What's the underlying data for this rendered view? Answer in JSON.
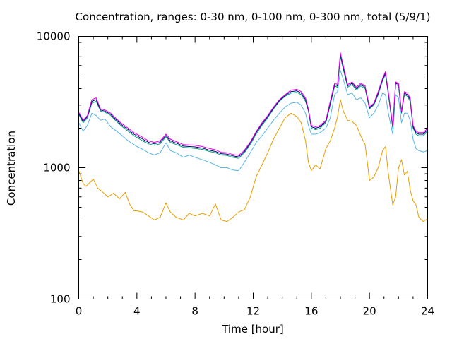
{
  "chart_data": {
    "type": "line",
    "title": "Concentration, ranges: 0-30 nm, 0-100 nm, 0-300 nm, total (5/9/1)",
    "xlabel": "Time [hour]",
    "ylabel": "Concentration",
    "xlim": [
      0,
      24
    ],
    "ylim": [
      100,
      10000
    ],
    "yscale": "log",
    "grid": false,
    "legend": "none",
    "x_ticks": [
      {
        "value": 0,
        "label": "0"
      },
      {
        "value": 4,
        "label": "4"
      },
      {
        "value": 8,
        "label": "8"
      },
      {
        "value": 12,
        "label": "12"
      },
      {
        "value": 16,
        "label": "16"
      },
      {
        "value": 20,
        "label": "20"
      },
      {
        "value": 24,
        "label": "24"
      }
    ],
    "y_ticks": [
      {
        "value": 100,
        "label": "100"
      },
      {
        "value": 1000,
        "label": "1000"
      },
      {
        "value": 10000,
        "label": "10000"
      }
    ],
    "series": [
      {
        "color": "#e69f00",
        "x": [
          0,
          0.3,
          0.5,
          0.8,
          1.0,
          1.3,
          1.6,
          2.0,
          2.4,
          2.8,
          3.2,
          3.5,
          3.8,
          4.0,
          4.4,
          4.8,
          5.2,
          5.6,
          6.0,
          6.3,
          6.7,
          7.2,
          7.6,
          8.0,
          8.5,
          9.0,
          9.4,
          9.8,
          10.2,
          10.6,
          11.0,
          11.4,
          11.8,
          12.2,
          12.6,
          13.0,
          13.4,
          13.8,
          14.2,
          14.6,
          15.0,
          15.3,
          15.6,
          15.8,
          16.0,
          16.3,
          16.6,
          17.0,
          17.3,
          17.6,
          17.8,
          18.0,
          18.2,
          18.5,
          18.8,
          19.1,
          19.4,
          19.7,
          20.0,
          20.3,
          20.6,
          20.9,
          21.1,
          21.3,
          21.6,
          21.8,
          22.0,
          22.2,
          22.4,
          22.6,
          22.8,
          23.0,
          23.2,
          23.4,
          23.7,
          24.0
        ],
        "values": [
          950,
          760,
          720,
          780,
          820,
          700,
          660,
          600,
          640,
          580,
          650,
          530,
          470,
          470,
          460,
          430,
          400,
          420,
          540,
          460,
          420,
          400,
          450,
          430,
          450,
          430,
          530,
          400,
          390,
          420,
          460,
          480,
          600,
          850,
          1050,
          1300,
          1650,
          2000,
          2400,
          2600,
          2450,
          2200,
          1600,
          1100,
          950,
          1050,
          980,
          1400,
          1600,
          2000,
          2450,
          3300,
          2700,
          2300,
          2250,
          2100,
          1750,
          1500,
          800,
          850,
          1000,
          1350,
          1450,
          900,
          520,
          600,
          1000,
          1150,
          880,
          940,
          680,
          560,
          520,
          420,
          390,
          410
        ]
      },
      {
        "color": "#56b4e9",
        "x": [
          0,
          0.3,
          0.6,
          0.9,
          1.2,
          1.5,
          1.8,
          2.2,
          2.6,
          3.0,
          3.4,
          3.8,
          4.0,
          4.4,
          4.8,
          5.2,
          5.6,
          6.0,
          6.3,
          6.7,
          7.2,
          7.6,
          8.0,
          8.5,
          9.0,
          9.4,
          9.8,
          10.2,
          10.6,
          11.0,
          11.4,
          11.8,
          12.2,
          12.6,
          13.0,
          13.4,
          13.8,
          14.2,
          14.6,
          15.0,
          15.3,
          15.6,
          15.8,
          16.0,
          16.3,
          16.6,
          17.0,
          17.3,
          17.6,
          17.8,
          18.0,
          18.2,
          18.5,
          18.8,
          19.1,
          19.4,
          19.7,
          20.0,
          20.3,
          20.6,
          20.9,
          21.1,
          21.3,
          21.6,
          21.8,
          22.0,
          22.2,
          22.4,
          22.6,
          22.8,
          23.0,
          23.2,
          23.4,
          23.7,
          24.0
        ],
        "values": [
          2200,
          1900,
          2100,
          2600,
          2500,
          2300,
          2350,
          2050,
          1900,
          1750,
          1600,
          1500,
          1450,
          1380,
          1300,
          1250,
          1300,
          1550,
          1350,
          1300,
          1200,
          1250,
          1200,
          1150,
          1100,
          1050,
          1000,
          1000,
          960,
          950,
          1100,
          1300,
          1550,
          1750,
          2000,
          2300,
          2600,
          2900,
          3100,
          3150,
          3000,
          2600,
          2100,
          1800,
          1800,
          1850,
          2000,
          2400,
          3600,
          3800,
          5500,
          4700,
          3600,
          3700,
          3300,
          3400,
          3100,
          2400,
          2600,
          3000,
          3700,
          3600,
          2600,
          1800,
          3600,
          3400,
          2200,
          2600,
          2600,
          2300,
          1650,
          1400,
          1350,
          1320,
          1350
        ]
      },
      {
        "color": "#009e73",
        "x": [
          0,
          0.3,
          0.6,
          0.9,
          1.2,
          1.5,
          1.8,
          2.2,
          2.6,
          3.0,
          3.4,
          3.8,
          4.0,
          4.4,
          4.8,
          5.2,
          5.6,
          6.0,
          6.3,
          6.7,
          7.2,
          7.6,
          8.0,
          8.5,
          9.0,
          9.4,
          9.8,
          10.2,
          10.6,
          11.0,
          11.4,
          11.8,
          12.2,
          12.6,
          13.0,
          13.4,
          13.8,
          14.2,
          14.6,
          15.0,
          15.3,
          15.6,
          15.8,
          16.0,
          16.3,
          16.6,
          17.0,
          17.3,
          17.6,
          17.8,
          18.0,
          18.2,
          18.5,
          18.8,
          19.1,
          19.4,
          19.7,
          20.0,
          20.3,
          20.6,
          20.9,
          21.1,
          21.3,
          21.6,
          21.8,
          22.0,
          22.2,
          22.4,
          22.6,
          22.8,
          23.0,
          23.2,
          23.4,
          23.7,
          24.0
        ],
        "values": [
          2550,
          2200,
          2400,
          3100,
          3200,
          2700,
          2650,
          2500,
          2250,
          2050,
          1900,
          1750,
          1700,
          1600,
          1520,
          1480,
          1520,
          1720,
          1560,
          1500,
          1430,
          1420,
          1400,
          1380,
          1330,
          1300,
          1250,
          1240,
          1200,
          1180,
          1300,
          1500,
          1800,
          2100,
          2400,
          2800,
          3200,
          3500,
          3700,
          3750,
          3600,
          3200,
          2700,
          2000,
          1950,
          2000,
          2200,
          3000,
          4200,
          4100,
          7000,
          5600,
          4100,
          4300,
          3900,
          4200,
          4000,
          2800,
          3000,
          3600,
          4600,
          5100,
          3600,
          2000,
          4300,
          4200,
          2600,
          3600,
          3500,
          3200,
          2000,
          1800,
          1750,
          1750,
          1900
        ]
      },
      {
        "color": "#000080",
        "x": [
          0,
          0.3,
          0.6,
          0.9,
          1.2,
          1.5,
          1.8,
          2.2,
          2.6,
          3.0,
          3.4,
          3.8,
          4.0,
          4.4,
          4.8,
          5.2,
          5.6,
          6.0,
          6.3,
          6.7,
          7.2,
          7.6,
          8.0,
          8.5,
          9.0,
          9.4,
          9.8,
          10.2,
          10.6,
          11.0,
          11.4,
          11.8,
          12.2,
          12.6,
          13.0,
          13.4,
          13.8,
          14.2,
          14.6,
          15.0,
          15.3,
          15.6,
          15.8,
          16.0,
          16.3,
          16.6,
          17.0,
          17.3,
          17.6,
          17.8,
          18.0,
          18.2,
          18.5,
          18.8,
          19.1,
          19.4,
          19.7,
          20.0,
          20.3,
          20.6,
          20.9,
          21.1,
          21.3,
          21.6,
          21.8,
          22.0,
          22.2,
          22.4,
          22.6,
          22.8,
          23.0,
          23.2,
          23.4,
          23.7,
          24.0
        ],
        "values": [
          2600,
          2250,
          2450,
          3200,
          3300,
          2750,
          2700,
          2550,
          2300,
          2100,
          1950,
          1800,
          1750,
          1650,
          1560,
          1520,
          1560,
          1760,
          1600,
          1540,
          1460,
          1450,
          1440,
          1410,
          1360,
          1330,
          1280,
          1270,
          1230,
          1210,
          1330,
          1540,
          1850,
          2150,
          2450,
          2850,
          3250,
          3550,
          3800,
          3850,
          3700,
          3300,
          2750,
          2050,
          2000,
          2050,
          2250,
          3100,
          4300,
          4200,
          7300,
          5800,
          4200,
          4400,
          4000,
          4300,
          4100,
          2850,
          3050,
          3700,
          4700,
          5250,
          3700,
          2050,
          4400,
          4300,
          2650,
          3700,
          3600,
          3300,
          2050,
          1850,
          1800,
          1800,
          1950
        ]
      },
      {
        "color": "#e800e8",
        "x": [
          0,
          0.3,
          0.6,
          0.9,
          1.2,
          1.5,
          1.8,
          2.2,
          2.6,
          3.0,
          3.4,
          3.8,
          4.0,
          4.4,
          4.8,
          5.2,
          5.6,
          6.0,
          6.3,
          6.7,
          7.2,
          7.6,
          8.0,
          8.5,
          9.0,
          9.4,
          9.8,
          10.2,
          10.6,
          11.0,
          11.4,
          11.8,
          12.2,
          12.6,
          13.0,
          13.4,
          13.8,
          14.2,
          14.6,
          15.0,
          15.3,
          15.6,
          15.8,
          16.0,
          16.3,
          16.6,
          17.0,
          17.3,
          17.6,
          17.8,
          18.0,
          18.2,
          18.5,
          18.8,
          19.1,
          19.4,
          19.7,
          20.0,
          20.3,
          20.6,
          20.9,
          21.1,
          21.3,
          21.6,
          21.8,
          22.0,
          22.2,
          22.4,
          22.6,
          22.8,
          23.0,
          23.2,
          23.4,
          23.7,
          24.0
        ],
        "values": [
          2650,
          2300,
          2500,
          3300,
          3400,
          2800,
          2750,
          2600,
          2350,
          2150,
          2000,
          1850,
          1800,
          1700,
          1600,
          1560,
          1600,
          1800,
          1650,
          1580,
          1500,
          1490,
          1480,
          1450,
          1400,
          1370,
          1310,
          1300,
          1260,
          1240,
          1360,
          1570,
          1880,
          2200,
          2500,
          2900,
          3300,
          3600,
          3900,
          3950,
          3800,
          3400,
          2800,
          2100,
          2050,
          2100,
          2300,
          3200,
          4400,
          4300,
          7500,
          6000,
          4300,
          4500,
          4100,
          4400,
          4200,
          2900,
          3100,
          3800,
          4800,
          5400,
          3800,
          2100,
          4500,
          4400,
          2700,
          3800,
          3700,
          3400,
          2100,
          1900,
          1850,
          1850,
          2000
        ]
      }
    ]
  }
}
